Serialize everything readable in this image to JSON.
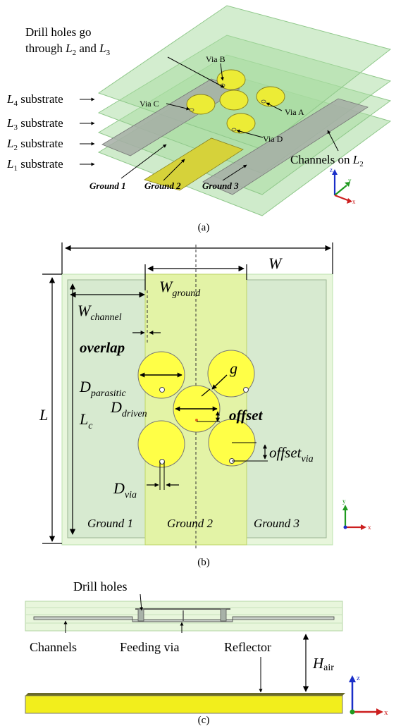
{
  "panel_a": {
    "caption": "(a)",
    "drill_line1": "Drill holes go",
    "drill_line2_prefix": "through ",
    "L": "L",
    "sub2": "2",
    "and_word": " and ",
    "sub3": "3",
    "sub4": "4",
    "sub1": "1",
    "substrate_word": " substrate",
    "via_a": "Via A",
    "via_b": "Via B",
    "via_c": "Via C",
    "via_d": "Via D",
    "channels_prefix": "Channels on ",
    "ground1": "Ground 1",
    "ground2": "Ground 2",
    "ground3": "Ground 3",
    "axis_x": "x",
    "axis_y": "y",
    "axis_z": "z"
  },
  "panel_b": {
    "caption": "(b)",
    "W": "W",
    "W_ground_main": "W",
    "W_ground_sub": "ground",
    "W_channel_main": "W",
    "W_channel_sub": "channel",
    "overlap": "overlap",
    "D_parasitic_main": "D",
    "D_parasitic_sub": "parasitic",
    "D_driven_main": "D",
    "D_driven_sub": "driven",
    "g": "g",
    "offset": "offset",
    "offset_via_main": "offset",
    "offset_via_sub": "via",
    "L": "L",
    "Lc_main": "L",
    "Lc_sub": "c",
    "D_via_main": "D",
    "D_via_sub": "via",
    "ground1": "Ground 1",
    "ground2": "Ground 2",
    "ground3": "Ground 3",
    "axis_x": "x",
    "axis_y": "y"
  },
  "panel_c": {
    "caption": "(c)",
    "drill_holes": "Drill holes",
    "channels": "Channels",
    "feeding_via": "Feeding via",
    "reflector": "Reflector",
    "H_air_main": "H",
    "H_air_sub": "air",
    "axis_x": "x",
    "axis_z": "z"
  },
  "colors": {
    "substrate": "#a8dba0",
    "ground_gray": "#a6aea6",
    "patch_yellow": "#ecec36",
    "ground2_yellow": "#d6d23a",
    "reflector": "#f2ee1c"
  }
}
